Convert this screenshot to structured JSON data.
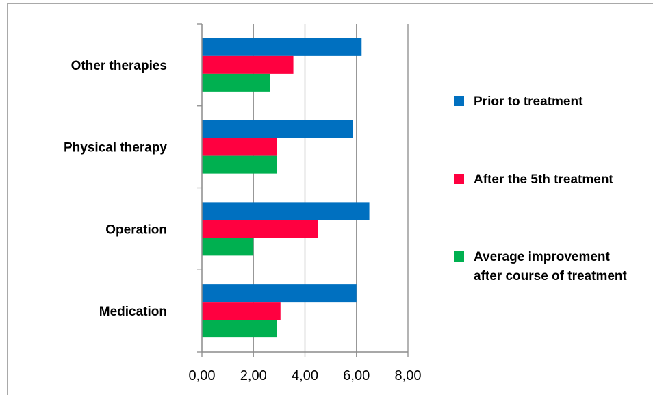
{
  "chart_data": {
    "type": "bar",
    "orientation": "horizontal",
    "title": "",
    "xlabel": "",
    "ylabel": "",
    "categories": [
      "Other therapies",
      "Physical therapy",
      "Operation",
      "Medication"
    ],
    "series": [
      {
        "name": "Prior to treatment",
        "color": "#0070c0",
        "values": [
          6.2,
          5.85,
          6.5,
          6.0
        ]
      },
      {
        "name": "After the 5th treatment",
        "color": "#ff0040",
        "values": [
          3.55,
          2.9,
          4.5,
          3.05
        ]
      },
      {
        "name": "Average improvement after course of treatment",
        "legend_lines": [
          "Average improvement",
          "after course of treatment"
        ],
        "color": "#00b050",
        "values": [
          2.65,
          2.9,
          2.0,
          2.9
        ]
      }
    ],
    "xlim": [
      0,
      8
    ],
    "xticks": [
      "0,00",
      "2,00",
      "4,00",
      "6,00",
      "8,00"
    ],
    "grid": true,
    "legend_position": "right"
  }
}
